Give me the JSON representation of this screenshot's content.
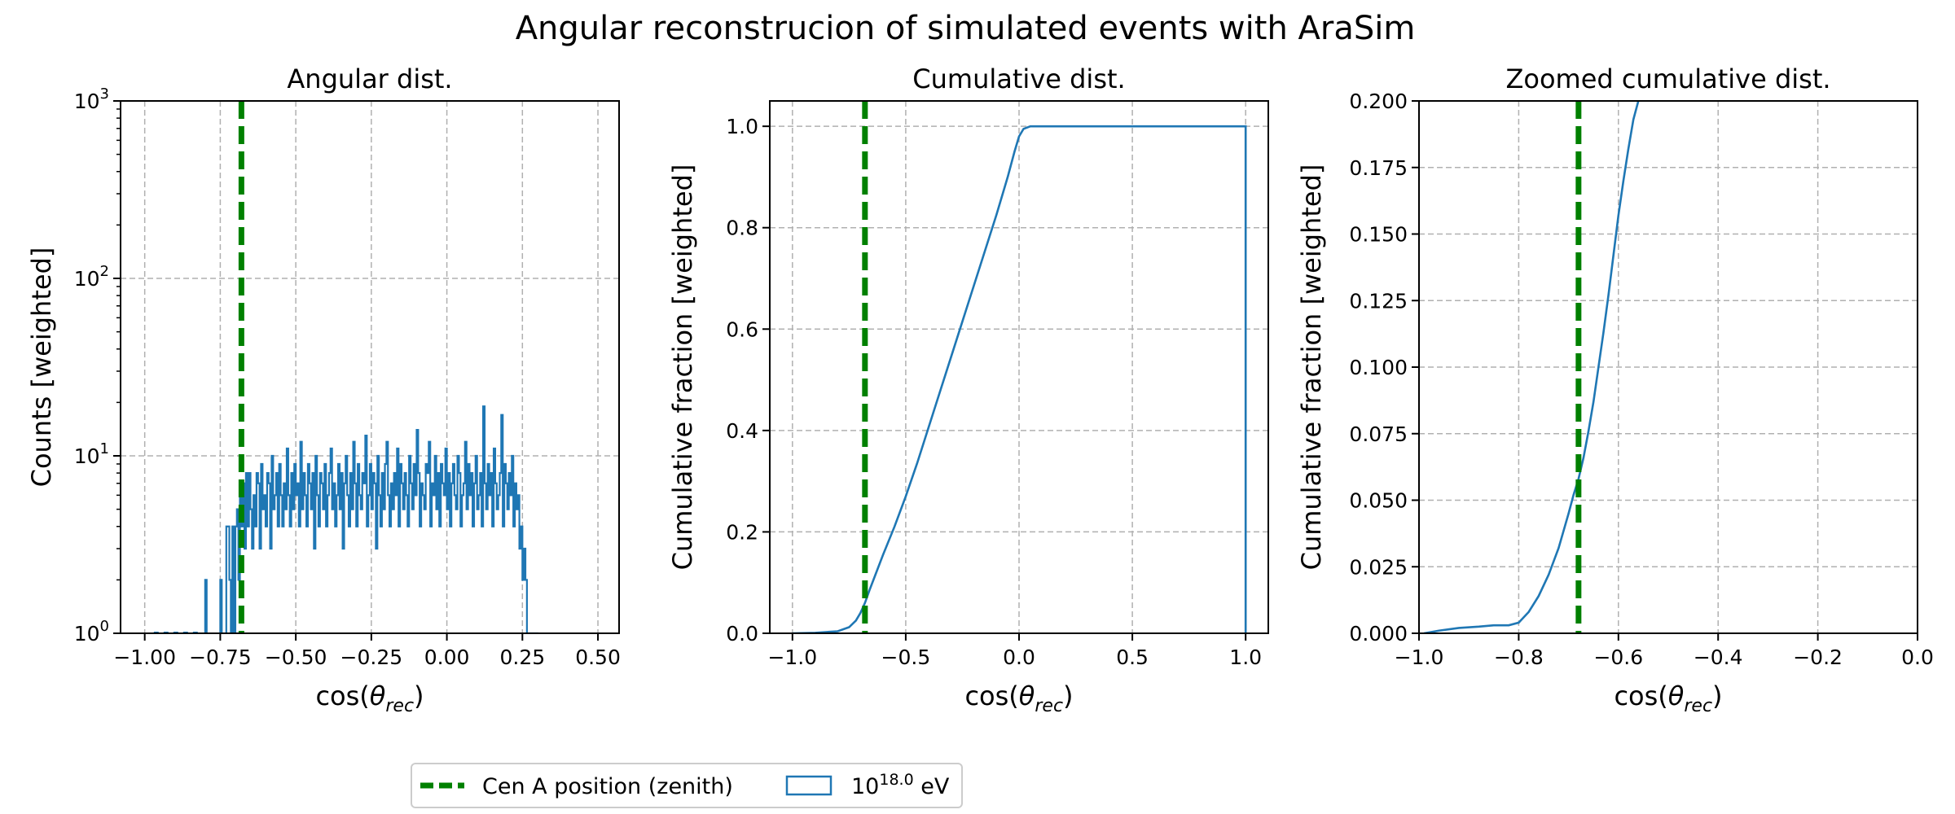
{
  "figure": {
    "title": "Angular reconstrucion of simulated events with AraSim"
  },
  "colors": {
    "histogram": "#1f77b4",
    "cen_a": "#008000",
    "grid": "#b0b0b0",
    "axes": "#000000"
  },
  "legend": {
    "placement": "bottom-center",
    "entries": [
      {
        "label": "Cen A position (zenith)",
        "style": "dashed-line",
        "color": "#008000"
      },
      {
        "label_base": "10",
        "label_sup": "18.0",
        "label_unit": " eV",
        "style": "box",
        "color": "#1f77b4"
      }
    ]
  },
  "chart_data": [
    {
      "type": "histogram",
      "title": "Angular dist.",
      "xlabel": "cos(θ_rec)",
      "ylabel": "Counts [weighted]",
      "xlim": [
        -1.08,
        0.57
      ],
      "ylim": [
        1,
        1000
      ],
      "yscale": "log",
      "grid": true,
      "x_ticks": [
        -1.0,
        -0.75,
        -0.5,
        -0.25,
        0.0,
        0.25,
        0.5
      ],
      "x_tick_labels": [
        "−1.00",
        "−0.75",
        "−0.50",
        "−0.25",
        "0.00",
        "0.25",
        "0.50"
      ],
      "y_ticks": [
        1,
        10,
        100,
        1000
      ],
      "y_tick_labels": [
        {
          "base": "10",
          "exp": "0"
        },
        {
          "base": "10",
          "exp": "1"
        },
        {
          "base": "10",
          "exp": "2"
        },
        {
          "base": "10",
          "exp": "3"
        }
      ],
      "vline_x": -0.68,
      "series_name": "10^18.0 eV",
      "bin_start": -0.8,
      "bin_width": 0.005,
      "counts": [
        2,
        0,
        0,
        0,
        0,
        0,
        0,
        0,
        0,
        0,
        2,
        0,
        0,
        0,
        4,
        4,
        2,
        0,
        4,
        0,
        4,
        5,
        2,
        6,
        4,
        7,
        3,
        8,
        4,
        8,
        5,
        3,
        6,
        4,
        8,
        7,
        3,
        9,
        5,
        6,
        4,
        8,
        7,
        3,
        10,
        5,
        6,
        8,
        4,
        9,
        6,
        4,
        7,
        5,
        11,
        6,
        4,
        8,
        5,
        9,
        6,
        7,
        4,
        12,
        5,
        8,
        6,
        4,
        9,
        7,
        5,
        8,
        3,
        10,
        6,
        4,
        8,
        7,
        5,
        9,
        4,
        6,
        8,
        11,
        5,
        7,
        4,
        6,
        9,
        5,
        8,
        3,
        7,
        10,
        6,
        4,
        8,
        5,
        12,
        7,
        4,
        9,
        6,
        5,
        8,
        7,
        13,
        4,
        6,
        9,
        5,
        8,
        7,
        3,
        10,
        6,
        4,
        8,
        5,
        9,
        12,
        6,
        4,
        7,
        5,
        8,
        6,
        11,
        4,
        9,
        7,
        5,
        8,
        6,
        4,
        10,
        7,
        5,
        9,
        6,
        14,
        8,
        4,
        7,
        6,
        5,
        9,
        8,
        12,
        4,
        7,
        6,
        10,
        5,
        8,
        4,
        9,
        7,
        6,
        11,
        5,
        8,
        4,
        7,
        9,
        6,
        5,
        10,
        8,
        4,
        6,
        7,
        12,
        5,
        9,
        6,
        8,
        4,
        7,
        10,
        5,
        6,
        8,
        4,
        19,
        7,
        5,
        9,
        6,
        8,
        4,
        11,
        7,
        5,
        6,
        8,
        17,
        4,
        9,
        7,
        5,
        8,
        6,
        10,
        4,
        7,
        5,
        6,
        3,
        4,
        2,
        3,
        2,
        1,
        1,
        1,
        1,
        1,
        1,
        1,
        0,
        0
      ]
    },
    {
      "type": "line",
      "title": "Cumulative dist.",
      "xlabel": "cos(θ_rec)",
      "ylabel": "Cumulative fraction [weighted]",
      "xlim": [
        -1.1,
        1.1
      ],
      "ylim": [
        0.0,
        1.05
      ],
      "grid": true,
      "x_ticks": [
        -1.0,
        -0.5,
        0.0,
        0.5,
        1.0
      ],
      "x_tick_labels": [
        "−1.0",
        "−0.5",
        "0.0",
        "0.5",
        "1.0"
      ],
      "y_ticks": [
        0.0,
        0.2,
        0.4,
        0.6,
        0.8,
        1.0
      ],
      "y_tick_labels": [
        "0.0",
        "0.2",
        "0.4",
        "0.6",
        "0.8",
        "1.0"
      ],
      "vline_x": -0.68,
      "x": [
        -1.0,
        -0.9,
        -0.8,
        -0.75,
        -0.72,
        -0.7,
        -0.68,
        -0.66,
        -0.63,
        -0.6,
        -0.55,
        -0.5,
        -0.45,
        -0.4,
        -0.35,
        -0.3,
        -0.25,
        -0.2,
        -0.15,
        -0.1,
        -0.05,
        -0.02,
        0.0,
        0.02,
        0.05,
        0.1,
        0.5,
        1.0,
        1.0
      ],
      "y": [
        0.0,
        0.001,
        0.004,
        0.012,
        0.025,
        0.04,
        0.06,
        0.085,
        0.12,
        0.155,
        0.21,
        0.27,
        0.335,
        0.405,
        0.475,
        0.545,
        0.615,
        0.685,
        0.755,
        0.825,
        0.9,
        0.95,
        0.98,
        0.995,
        1.0,
        1.0,
        1.0,
        1.0,
        0.0
      ]
    },
    {
      "type": "line",
      "title": "Zoomed cumulative dist.",
      "xlabel": "cos(θ_rec)",
      "ylabel": "Cumulative fraction [weighted]",
      "xlim": [
        -1.0,
        0.0
      ],
      "ylim": [
        0.0,
        0.2
      ],
      "grid": true,
      "x_ticks": [
        -1.0,
        -0.8,
        -0.6,
        -0.4,
        -0.2,
        0.0
      ],
      "x_tick_labels": [
        "−1.0",
        "−0.8",
        "−0.6",
        "−0.4",
        "−0.2",
        "0.0"
      ],
      "y_ticks": [
        0.0,
        0.025,
        0.05,
        0.075,
        0.1,
        0.125,
        0.15,
        0.175,
        0.2
      ],
      "y_tick_labels": [
        "0.000",
        "0.025",
        "0.050",
        "0.075",
        "0.100",
        "0.125",
        "0.150",
        "0.175",
        "0.200"
      ],
      "vline_x": -0.68,
      "x": [
        -0.99,
        -0.96,
        -0.92,
        -0.88,
        -0.85,
        -0.82,
        -0.8,
        -0.78,
        -0.76,
        -0.74,
        -0.72,
        -0.7,
        -0.69,
        -0.68,
        -0.67,
        -0.66,
        -0.65,
        -0.64,
        -0.63,
        -0.62,
        -0.61,
        -0.6,
        -0.59,
        -0.58,
        -0.57,
        -0.56
      ],
      "y": [
        0.0,
        0.001,
        0.002,
        0.0025,
        0.003,
        0.003,
        0.004,
        0.008,
        0.014,
        0.022,
        0.032,
        0.045,
        0.052,
        0.058,
        0.066,
        0.076,
        0.087,
        0.1,
        0.113,
        0.127,
        0.142,
        0.157,
        0.17,
        0.182,
        0.193,
        0.2
      ]
    }
  ]
}
